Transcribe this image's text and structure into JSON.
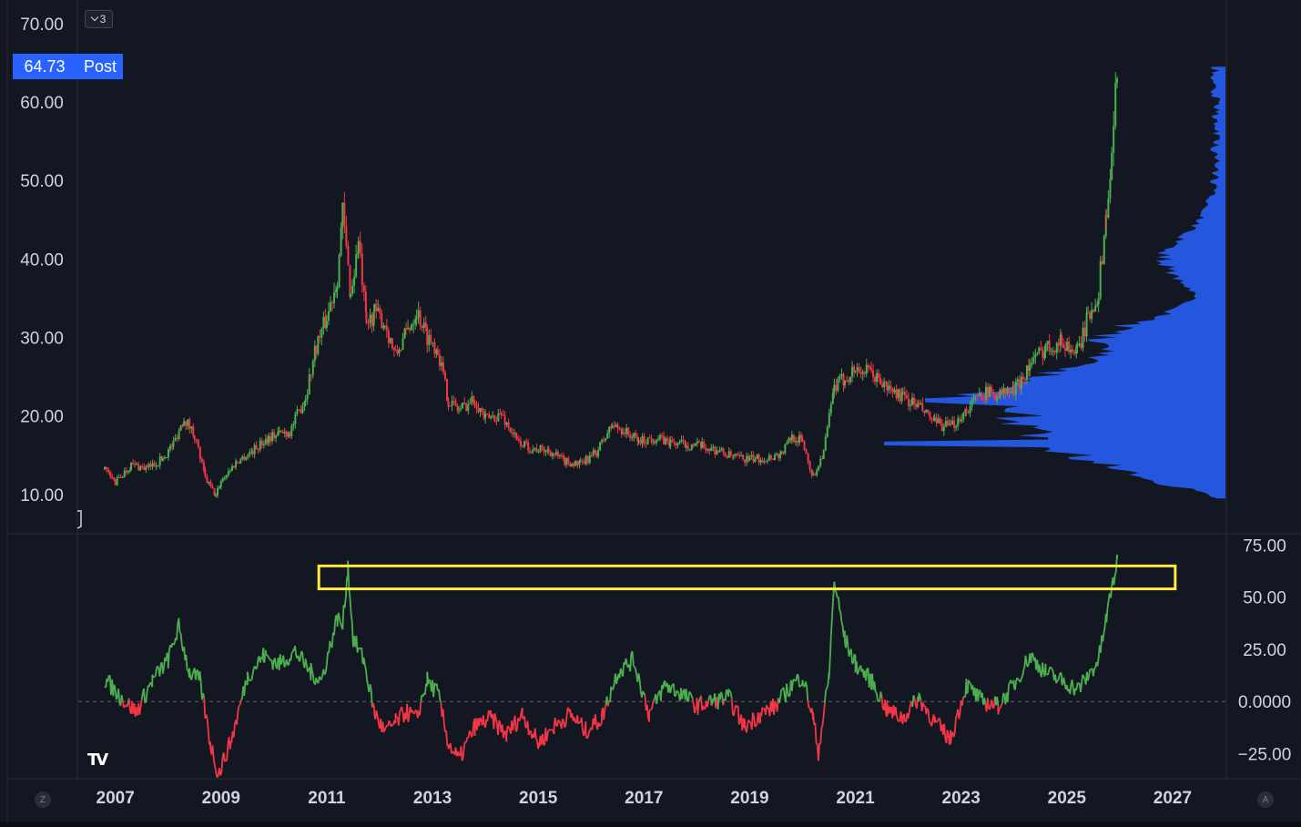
{
  "header": {
    "layers_count": "3"
  },
  "price_badge": {
    "value": "64.73",
    "session": "Post"
  },
  "buttons": {
    "zoom_label": "Z",
    "auto_label": "A"
  },
  "colors": {
    "background": "#131722",
    "up": "#4caf50",
    "down": "#f23645",
    "volume_profile": "#2962ff",
    "highlight_box": "#ffeb3b",
    "badge": "#2962ff"
  },
  "chart_data": [
    {
      "type": "candlestick",
      "x_range": [
        2006.3,
        2028.0
      ],
      "ylim": [
        5.0,
        73.0
      ],
      "y_ticks": [
        "10.00",
        "20.00",
        "30.00",
        "40.00",
        "50.00",
        "60.00",
        "70.00"
      ],
      "x_ticks": [
        "2007",
        "2009",
        "2011",
        "2013",
        "2015",
        "2017",
        "2019",
        "2021",
        "2023",
        "2025",
        "2027"
      ],
      "series": [
        {
          "x": [
            2006.8,
            2007.0,
            2007.3,
            2007.6,
            2007.9,
            2008.1,
            2008.3,
            2008.5,
            2008.7,
            2008.9,
            2009.0,
            2009.3,
            2009.6,
            2009.9,
            2010.1,
            2010.3,
            2010.6,
            2010.8,
            2011.0,
            2011.2,
            2011.3,
            2011.45,
            2011.6,
            2011.75,
            2011.9,
            2012.1,
            2012.3,
            2012.5,
            2012.7,
            2012.9,
            2013.1,
            2013.3,
            2013.5,
            2013.8,
            2014.0,
            2014.3,
            2014.6,
            2014.9,
            2015.2,
            2015.5,
            2015.8,
            2016.1,
            2016.4,
            2016.6,
            2016.9,
            2017.2,
            2017.5,
            2017.8,
            2018.1,
            2018.4,
            2018.7,
            2019.0,
            2019.3,
            2019.6,
            2019.8,
            2020.0,
            2020.2,
            2020.4,
            2020.6,
            2020.8,
            2021.0,
            2021.3,
            2021.6,
            2021.9,
            2022.2,
            2022.5,
            2022.8,
            2023.1,
            2023.4,
            2023.7,
            2024.0,
            2024.3,
            2024.6,
            2024.9,
            2025.2,
            2025.4,
            2025.6,
            2025.75,
            2025.85,
            2025.95
          ],
          "close": [
            13.2,
            11.5,
            13.8,
            13.3,
            14.6,
            16.5,
            19.8,
            17.6,
            12.1,
            9.8,
            11.8,
            14.2,
            15.6,
            17.3,
            17.8,
            18.0,
            22.5,
            29.0,
            32.5,
            37.8,
            46.0,
            35.5,
            42.0,
            31.5,
            33.2,
            31.8,
            27.6,
            30.5,
            33.5,
            30.2,
            28.5,
            22.0,
            20.8,
            22.2,
            19.6,
            20.2,
            16.8,
            15.8,
            15.6,
            14.2,
            13.8,
            15.4,
            18.8,
            18.2,
            16.8,
            17.2,
            16.6,
            16.4,
            16.1,
            15.6,
            14.7,
            14.5,
            14.6,
            15.2,
            17.4,
            16.8,
            12.2,
            15.5,
            23.6,
            24.8,
            26.0,
            25.4,
            23.6,
            22.4,
            21.2,
            19.1,
            18.5,
            20.8,
            23.0,
            22.8,
            23.2,
            26.5,
            28.8,
            29.5,
            28.0,
            32.5,
            36.0,
            46.0,
            52.0,
            64.73
          ]
        }
      ]
    },
    {
      "type": "line",
      "ylim": [
        -37.0,
        80.0
      ],
      "y_ticks": [
        "75.00",
        "50.00",
        "25.00",
        "0.0000",
        "−25.00"
      ],
      "baseline": 0,
      "highlight_band": {
        "x": [
          2010.85,
          2027.05
        ],
        "y": [
          54,
          65
        ]
      },
      "series": [
        {
          "x": [
            2006.8,
            2007.1,
            2007.4,
            2007.7,
            2008.0,
            2008.2,
            2008.4,
            2008.6,
            2008.8,
            2008.95,
            2009.2,
            2009.5,
            2009.8,
            2010.1,
            2010.4,
            2010.7,
            2010.9,
            2011.1,
            2011.2,
            2011.3,
            2011.4,
            2011.5,
            2011.7,
            2011.9,
            2012.1,
            2012.3,
            2012.5,
            2012.7,
            2012.9,
            2013.1,
            2013.3,
            2013.5,
            2013.8,
            2014.1,
            2014.4,
            2014.7,
            2015.0,
            2015.3,
            2015.6,
            2015.9,
            2016.2,
            2016.5,
            2016.8,
            2017.1,
            2017.4,
            2017.7,
            2018.0,
            2018.3,
            2018.6,
            2018.9,
            2019.2,
            2019.5,
            2019.8,
            2020.0,
            2020.2,
            2020.3,
            2020.5,
            2020.6,
            2020.8,
            2021.0,
            2021.3,
            2021.6,
            2021.9,
            2022.2,
            2022.5,
            2022.8,
            2023.1,
            2023.4,
            2023.7,
            2024.0,
            2024.3,
            2024.6,
            2024.9,
            2025.2,
            2025.4,
            2025.6,
            2025.75,
            2025.85,
            2025.95
          ],
          "values": [
            11.0,
            2.0,
            -5.0,
            10.0,
            20.0,
            36.0,
            14.0,
            10.0,
            -20.0,
            -35.0,
            -18.0,
            12.0,
            22.0,
            18.0,
            24.0,
            14.0,
            10.0,
            30.0,
            40.0,
            36.0,
            65.0,
            30.0,
            20.0,
            -5.0,
            -15.0,
            -10.0,
            -5.0,
            -8.0,
            10.0,
            4.0,
            -20.0,
            -28.0,
            -12.0,
            -8.0,
            -16.0,
            -6.0,
            -20.0,
            -12.0,
            -6.0,
            -14.0,
            -8.0,
            14.0,
            20.0,
            -6.0,
            8.0,
            4.0,
            -2.0,
            0.0,
            2.0,
            -12.0,
            -6.0,
            -2.0,
            8.0,
            12.0,
            -8.0,
            -24.0,
            12.0,
            58.0,
            30.0,
            18.0,
            10.0,
            -4.0,
            -8.0,
            2.0,
            -10.0,
            -18.0,
            8.0,
            0.0,
            -2.0,
            8.0,
            22.0,
            14.0,
            10.0,
            6.0,
            12.0,
            20.0,
            40.0,
            55.0,
            66.0
          ]
        }
      ]
    }
  ]
}
